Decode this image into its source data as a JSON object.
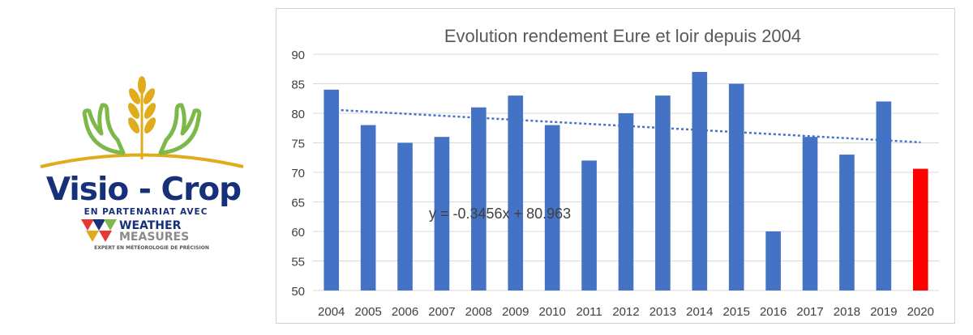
{
  "logo": {
    "brand": "Visio - Crop",
    "partner_text": "EN PARTENARIAT AVEC",
    "partner_name_line1": "WEATHER",
    "partner_name_line2": "MEASURES",
    "partner_tagline": "EXPERT EN MÉTÉOROLOGIE DE PRÉCISION",
    "colors": {
      "navy": "#16307a",
      "gold": "#e0ac1c",
      "green": "#7cb84a",
      "red": "#e53935"
    }
  },
  "chart_data": {
    "type": "bar",
    "title": "Evolution rendement Eure et loir depuis 2004",
    "xlabel": "",
    "ylabel": "",
    "categories": [
      "2004",
      "2005",
      "2006",
      "2007",
      "2008",
      "2009",
      "2010",
      "2011",
      "2012",
      "2013",
      "2014",
      "2015",
      "2016",
      "2017",
      "2018",
      "2019",
      "2020"
    ],
    "values": [
      84,
      78,
      75,
      76,
      81,
      83,
      78,
      72,
      80,
      83,
      87,
      85,
      60,
      76,
      73,
      82,
      70.6
    ],
    "ylim": [
      50,
      90
    ],
    "yticks": [
      50,
      55,
      60,
      65,
      70,
      75,
      80,
      85,
      90
    ],
    "grid": true,
    "bar_color": "#4472c4",
    "highlight_color": "#ff0000",
    "highlight_index": 16,
    "trendline": {
      "label": "y = -0.3456x + 80.963",
      "slope": -0.3456,
      "intercept": 80.963,
      "x_from": 1,
      "x_to": 17,
      "color": "#4472c4"
    }
  }
}
